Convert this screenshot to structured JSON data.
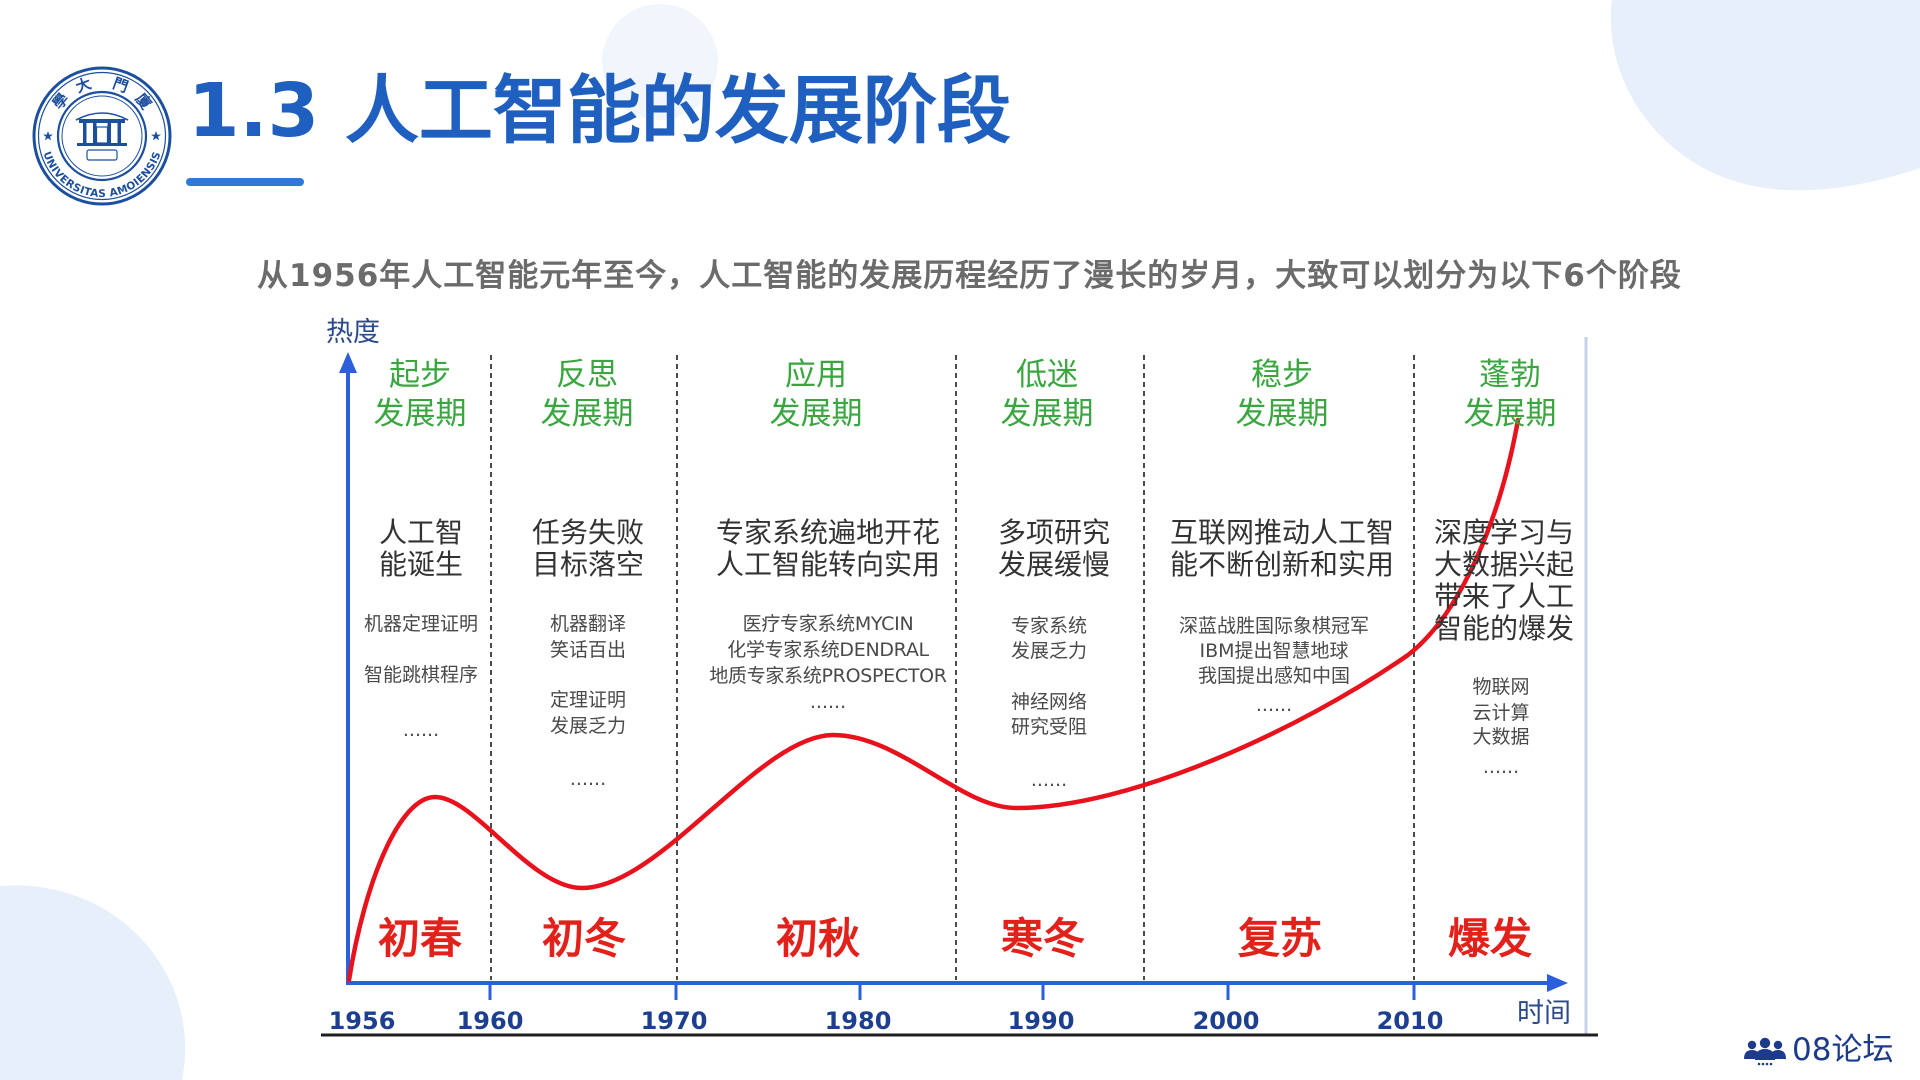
{
  "slide": {
    "title": "1.3 人工智能的发展阶段",
    "subtitle": "从1956年人工智能元年至今，人工智能的发展历程经历了漫长的岁月，大致可以划分为以下6个阶段"
  },
  "logo": {
    "top_chars": [
      "學",
      "大",
      "門",
      "廈"
    ],
    "bottom_text": "UNIVERSITAS AMOIENSIS"
  },
  "diagram": {
    "y_axis_label": "热度",
    "x_axis_label": "时间",
    "years": [
      "1956",
      "1960",
      "1970",
      "1980",
      "1990",
      "2000",
      "2010"
    ],
    "phases": [
      {
        "name": [
          "起步",
          "发展期"
        ],
        "summary": [
          "人工智",
          "能诞生"
        ],
        "details": [
          "机器定理证明",
          "智能跳棋程序",
          "......"
        ],
        "season": "初春"
      },
      {
        "name": [
          "反思",
          "发展期"
        ],
        "summary": [
          "任务失败",
          "目标落空"
        ],
        "details": [
          "机器翻译",
          "笑话百出",
          "定理证明",
          "发展乏力",
          "......"
        ],
        "season": "初冬"
      },
      {
        "name": [
          "应用",
          "发展期"
        ],
        "summary": [
          "专家系统遍地开花",
          "人工智能转向实用"
        ],
        "details": [
          "医疗专家系统MYCIN",
          "化学专家系统DENDRAL",
          "地质专家系统PROSPECTOR",
          "......"
        ],
        "season": "初秋"
      },
      {
        "name": [
          "低迷",
          "发展期"
        ],
        "summary": [
          "多项研究",
          "发展缓慢"
        ],
        "details": [
          "专家系统",
          "发展乏力",
          "神经网络",
          "研究受阻",
          "......"
        ],
        "season": "寒冬"
      },
      {
        "name": [
          "稳步",
          "发展期"
        ],
        "summary": [
          "互联网推动人工智",
          "能不断创新和实用"
        ],
        "details": [
          "深蓝战胜国际象棋冠军",
          "IBM提出智慧地球",
          "我国提出感知中国",
          "......"
        ],
        "season": "复苏"
      },
      {
        "name": [
          "蓬勃",
          "发展期"
        ],
        "summary": [
          "深度学习与",
          "大数据兴起",
          "带来了人工",
          "智能的爆发"
        ],
        "details": [
          "物联网",
          "云计算",
          "大数据",
          "......"
        ],
        "season": "爆发"
      }
    ]
  },
  "watermark": {
    "text": "08论坛",
    "icon": "people-group-icon"
  },
  "colors": {
    "title": "#1f5fbf",
    "accent_bar": "#2d79d6",
    "subtitle": "#6b6b6b",
    "phase_name": "#3aa63f",
    "season": "#e3211b",
    "curve": "#e8121c",
    "axis": "#2c5fdc",
    "year_label": "#1d3f8f",
    "decor": "#e6effa",
    "logo": "#1d4f9f",
    "watermark": "#1d3b8b"
  }
}
